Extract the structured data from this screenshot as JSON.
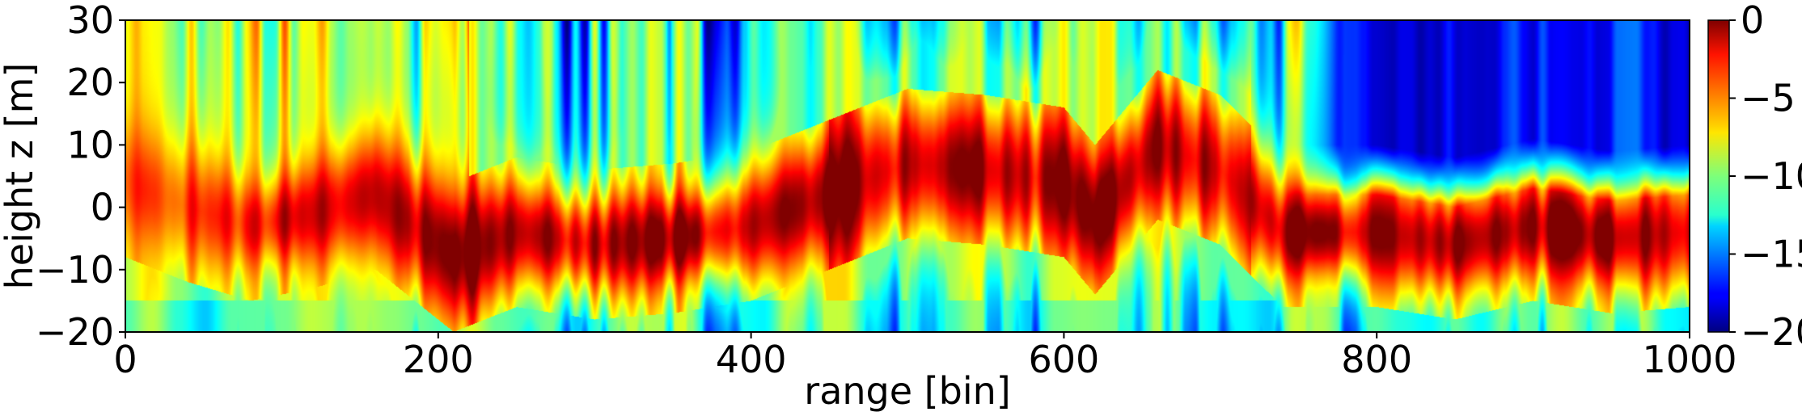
{
  "chart_data": {
    "type": "heatmap",
    "title": "",
    "xlabel": "range [bin]",
    "ylabel": "height z [m]",
    "xlim": [
      0,
      1000
    ],
    "ylim": [
      -20,
      30
    ],
    "colormap": "jet",
    "color_range": [
      -20,
      0
    ],
    "x_ticks": [
      0,
      200,
      400,
      600,
      800,
      1000
    ],
    "x_tick_labels": [
      "0",
      "200",
      "400",
      "600",
      "800",
      "1000"
    ],
    "y_ticks": [
      -20,
      -10,
      0,
      10,
      20,
      30
    ],
    "y_tick_labels": [
      "−20",
      "−10",
      "0",
      "10",
      "20",
      "30"
    ],
    "colorbar_ticks": [
      0,
      -5,
      -10,
      -15,
      -20
    ],
    "colorbar_tick_labels": [
      "0",
      "−5",
      "−10",
      "−15",
      "−20"
    ],
    "ridge_center_height": [
      [
        0,
        4
      ],
      [
        40,
        0
      ],
      [
        80,
        -3
      ],
      [
        120,
        -1
      ],
      [
        160,
        2
      ],
      [
        190,
        -4
      ],
      [
        210,
        -8
      ],
      [
        250,
        -4
      ],
      [
        300,
        -6
      ],
      [
        350,
        -5
      ],
      [
        400,
        -3
      ],
      [
        450,
        2
      ],
      [
        500,
        7
      ],
      [
        550,
        6
      ],
      [
        600,
        4
      ],
      [
        620,
        -2
      ],
      [
        660,
        10
      ],
      [
        700,
        6
      ],
      [
        740,
        -4
      ],
      [
        800,
        -4
      ],
      [
        850,
        -6
      ],
      [
        900,
        -3
      ],
      [
        950,
        -5
      ],
      [
        1000,
        -4
      ]
    ],
    "features": [
      {
        "x_range": [
          0,
          220
        ],
        "value": "near 0 dB from -20 to 30 m in vertical streaks"
      },
      {
        "x_range": [
          740,
          1000
        ],
        "z_range": [
          5,
          30
        ],
        "value": "about -18 dB (deep blue)"
      },
      {
        "x_range": [
          740,
          1000
        ],
        "z_range": [
          -10,
          -2
        ],
        "value": "0 to -3 dB ridge"
      }
    ]
  }
}
